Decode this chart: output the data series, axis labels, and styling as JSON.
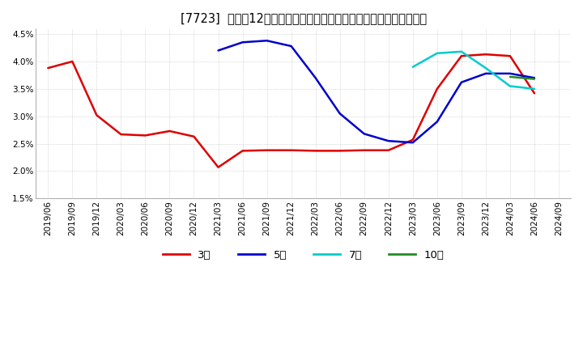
{
  "title": "[7723]  売上高12か月移動合計の対前年同期増減率の標準偏差の推移",
  "ylim": [
    0.015,
    0.046
  ],
  "yticks": [
    0.015,
    0.02,
    0.025,
    0.03,
    0.035,
    0.04,
    0.045
  ],
  "ytick_labels": [
    "1.5%",
    "2.0%",
    "2.5%",
    "3.0%",
    "3.5%",
    "4.0%",
    "4.5%"
  ],
  "series": {
    "3年": {
      "color": "#dd0000",
      "x": [
        "2019/06",
        "2019/09",
        "2019/12",
        "2020/03",
        "2020/06",
        "2020/09",
        "2020/12",
        "2021/03",
        "2021/06",
        "2021/09",
        "2021/12",
        "2022/03",
        "2022/06",
        "2022/09",
        "2022/12",
        "2023/03",
        "2023/06",
        "2023/09",
        "2023/12",
        "2024/03",
        "2024/06"
      ],
      "y": [
        0.0388,
        0.04,
        0.0302,
        0.0267,
        0.0265,
        0.0273,
        0.0263,
        0.0207,
        0.0237,
        0.0238,
        0.0238,
        0.0237,
        0.0237,
        0.0238,
        0.0238,
        0.0257,
        0.035,
        0.041,
        0.0413,
        0.041,
        0.0342
      ]
    },
    "5年": {
      "color": "#0000cc",
      "x": [
        "2021/03",
        "2021/06",
        "2021/09",
        "2021/12",
        "2022/03",
        "2022/06",
        "2022/09",
        "2022/12",
        "2023/03",
        "2023/06",
        "2023/09",
        "2023/12",
        "2024/03",
        "2024/06"
      ],
      "y": [
        0.042,
        0.0435,
        0.0438,
        0.0428,
        0.037,
        0.0305,
        0.0268,
        0.0255,
        0.0252,
        0.029,
        0.0362,
        0.0378,
        0.0378,
        0.037
      ]
    },
    "7年": {
      "color": "#00cccc",
      "x": [
        "2023/03",
        "2023/06",
        "2023/09",
        "2023/12",
        "2024/03",
        "2024/06"
      ],
      "y": [
        0.039,
        0.0415,
        0.0418,
        0.0388,
        0.0355,
        0.035
      ]
    },
    "10年": {
      "color": "#228B22",
      "x": [
        "2024/03",
        "2024/06"
      ],
      "y": [
        0.0372,
        0.0368
      ]
    }
  },
  "legend": {
    "3年": "#dd0000",
    "5年": "#0000cc",
    "7年": "#00cccc",
    "10年": "#228B22"
  },
  "x_tick_labels": [
    "2019/06",
    "2019/09",
    "2019/12",
    "2020/03",
    "2020/06",
    "2020/09",
    "2020/12",
    "2021/03",
    "2021/06",
    "2021/09",
    "2021/12",
    "2022/03",
    "2022/06",
    "2022/09",
    "2022/12",
    "2023/03",
    "2023/06",
    "2023/09",
    "2023/12",
    "2024/03",
    "2024/06",
    "2024/09"
  ],
  "background_color": "#ffffff",
  "grid_color": "#aaaaaa",
  "title_fontsize": 10.5,
  "tick_fontsize": 7.5,
  "legend_fontsize": 9.5
}
